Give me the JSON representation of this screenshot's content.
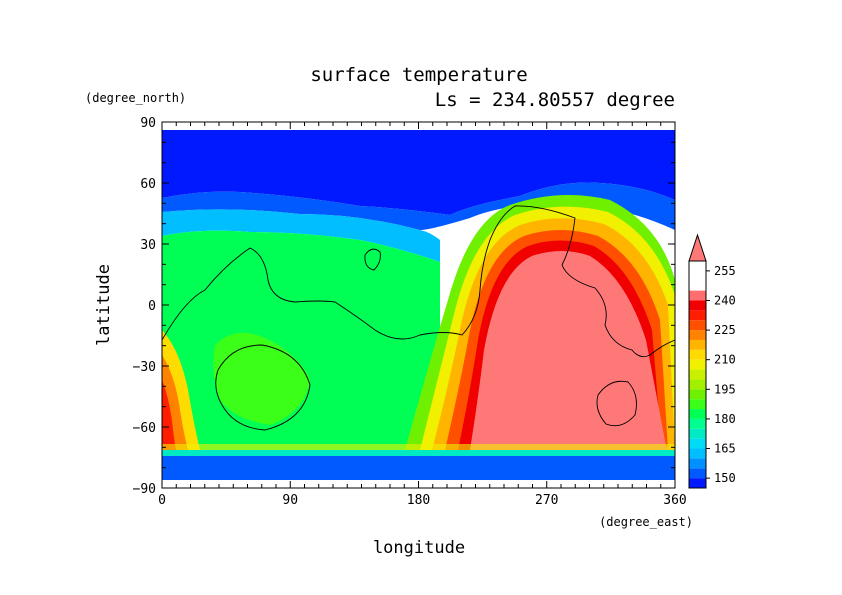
{
  "chart_data": {
    "type": "heatmap",
    "title": "surface temperature",
    "subtitle": "Ls = 234.80557 degree",
    "xlabel": "longitude",
    "ylabel": "latitude",
    "xunit": "(degree_east)",
    "yunit": "(degree_north)",
    "xlim": [
      0,
      360
    ],
    "ylim": [
      -90,
      90
    ],
    "x_ticks": [
      "0",
      "90",
      "180",
      "270",
      "360"
    ],
    "y_ticks": [
      "90",
      "60",
      "30",
      "0",
      "−30",
      "−60",
      "−90"
    ],
    "colorbar": {
      "levels": [
        145,
        150,
        155,
        160,
        165,
        170,
        175,
        180,
        185,
        190,
        195,
        200,
        205,
        210,
        215,
        220,
        225,
        230,
        235,
        240,
        245,
        250,
        255,
        260
      ],
      "tick_labels": [
        "150",
        "165",
        "180",
        "195",
        "210",
        "225",
        "240",
        "255"
      ],
      "colors": [
        "#0019ff",
        "#005aff",
        "#0091ff",
        "#00beff",
        "#00dcf5",
        "#00ebc3",
        "#00ff91",
        "#00ff55",
        "#3cff19",
        "#6ef000",
        "#a0f000",
        "#c8f000",
        "#f0f000",
        "#ffdc00",
        "#ffb400",
        "#ff8200",
        "#ff5000",
        "#ff1e00",
        "#f00000",
        "#ff6e6e"
      ],
      "under_color": "#0000dc",
      "over_color": "#ff7878"
    }
  }
}
